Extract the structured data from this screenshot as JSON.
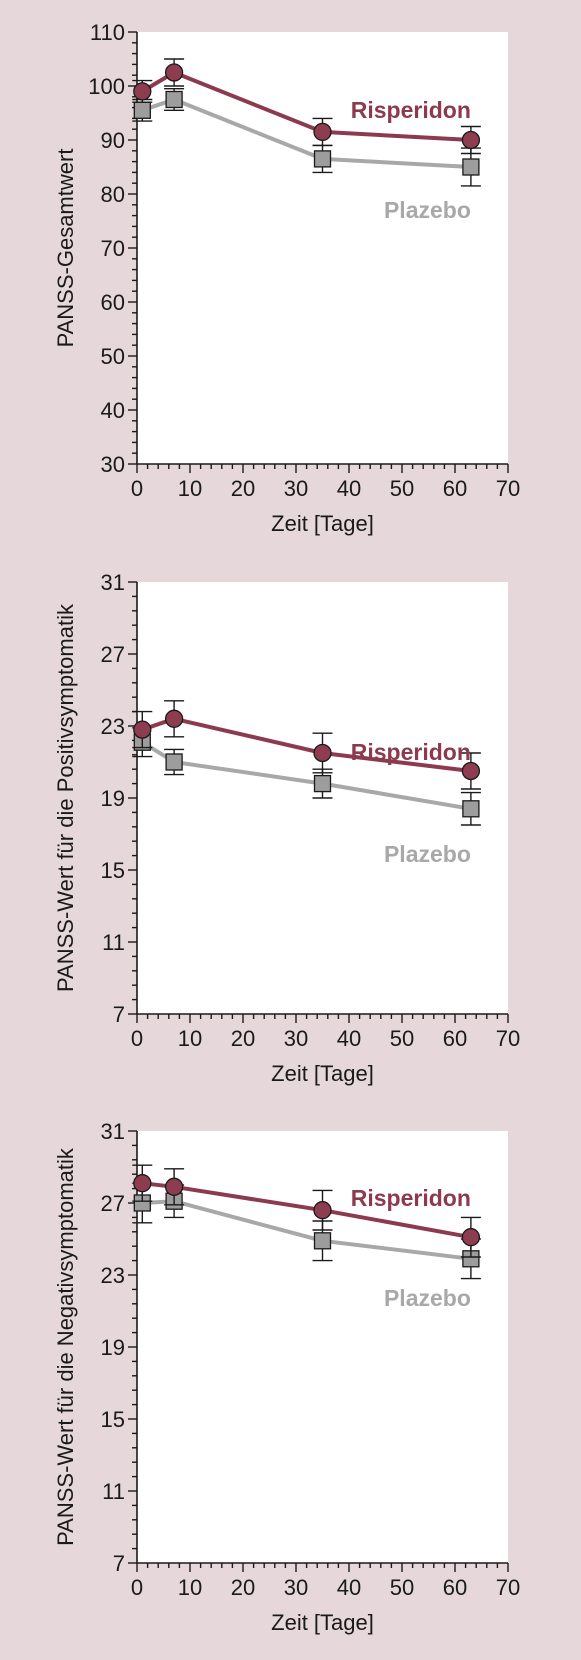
{
  "colors": {
    "background": "#e6d8da",
    "plot_area": "#ffffff",
    "risperidon": "#8c3a4e",
    "plazebo": "#a8a8a8",
    "marker_fill_risperidon": "#8e3c50",
    "marker_fill_plazebo": "#9d9d9d",
    "axis": "#1a1a1a"
  },
  "chart_data": [
    {
      "type": "line",
      "xlabel": "Zeit [Tage]",
      "ylabel": "PANSS-Gesamtwert",
      "xlim": [
        0,
        70
      ],
      "ylim": [
        30,
        110
      ],
      "xticks": [
        0,
        10,
        20,
        30,
        40,
        50,
        60,
        70
      ],
      "yticks": [
        30,
        40,
        50,
        60,
        70,
        80,
        90,
        100,
        110
      ],
      "legend_placement": "inline-right",
      "series": [
        {
          "name": "Risperidon",
          "marker": "circle",
          "x": [
            1,
            7,
            35,
            63
          ],
          "y": [
            99,
            102.5,
            91.5,
            90
          ],
          "err": [
            2,
            2.5,
            2.5,
            2.5
          ]
        },
        {
          "name": "Plazebo",
          "marker": "square",
          "x": [
            1,
            7,
            35,
            63
          ],
          "y": [
            95.5,
            97.5,
            86.5,
            85
          ],
          "err": [
            2,
            2,
            2.5,
            3.5
          ]
        }
      ]
    },
    {
      "type": "line",
      "xlabel": "Zeit [Tage]",
      "ylabel": "PANSS-Wert für die Positivsymptomatik",
      "xlim": [
        0,
        70
      ],
      "ylim": [
        7,
        31
      ],
      "xticks": [
        0,
        10,
        20,
        30,
        40,
        50,
        60,
        70
      ],
      "yticks": [
        7,
        11,
        15,
        19,
        23,
        27,
        31
      ],
      "legend_placement": "inline-right",
      "series": [
        {
          "name": "Risperidon",
          "marker": "circle",
          "x": [
            1,
            7,
            35,
            63
          ],
          "y": [
            22.8,
            23.4,
            21.5,
            20.5
          ],
          "err": [
            1,
            1,
            1.1,
            1
          ]
        },
        {
          "name": "Plazebo",
          "marker": "square",
          "x": [
            1,
            7,
            35,
            63
          ],
          "y": [
            22.1,
            21,
            19.8,
            18.4
          ],
          "err": [
            0.8,
            0.7,
            0.8,
            0.9
          ]
        }
      ]
    },
    {
      "type": "line",
      "xlabel": "Zeit [Tage]",
      "ylabel": "PANSS-Wert für die Negativsymptomatik",
      "xlim": [
        0,
        70
      ],
      "ylim": [
        7,
        31
      ],
      "xticks": [
        0,
        10,
        20,
        30,
        40,
        50,
        60,
        70
      ],
      "yticks": [
        7,
        11,
        15,
        19,
        23,
        27,
        31
      ],
      "legend_placement": "inline-right",
      "series": [
        {
          "name": "Risperidon",
          "marker": "circle",
          "x": [
            1,
            7,
            35,
            63
          ],
          "y": [
            28.1,
            27.9,
            26.6,
            25.1
          ],
          "err": [
            1,
            1,
            1.1,
            1.1
          ]
        },
        {
          "name": "Plazebo",
          "marker": "square",
          "x": [
            1,
            7,
            35,
            63
          ],
          "y": [
            27,
            27.1,
            24.9,
            23.9
          ],
          "err": [
            1.1,
            0.9,
            1.1,
            1.1
          ]
        }
      ]
    }
  ]
}
